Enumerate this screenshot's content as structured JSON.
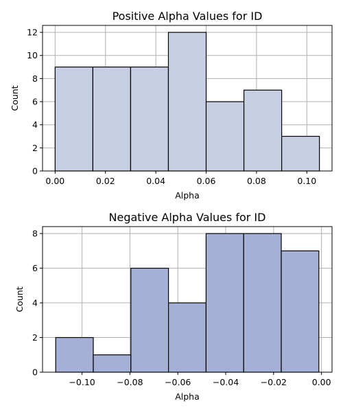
{
  "chart_data": [
    {
      "type": "bar",
      "title": "Positive Alpha Values for ID",
      "xlabel": "Alpha",
      "ylabel": "Count",
      "bins": [
        {
          "x0": 0.0,
          "x1": 0.015,
          "count": 9
        },
        {
          "x0": 0.015,
          "x1": 0.03,
          "count": 9
        },
        {
          "x0": 0.03,
          "x1": 0.045,
          "count": 9
        },
        {
          "x0": 0.045,
          "x1": 0.06,
          "count": 12
        },
        {
          "x0": 0.06,
          "x1": 0.075,
          "count": 6
        },
        {
          "x0": 0.075,
          "x1": 0.09,
          "count": 7
        },
        {
          "x0": 0.09,
          "x1": 0.105,
          "count": 3
        }
      ],
      "xlim": [
        -0.005,
        0.11
      ],
      "ylim": [
        0,
        12.6
      ],
      "xticks": [
        0.0,
        0.02,
        0.04,
        0.06,
        0.08,
        0.1
      ],
      "xtick_labels": [
        "0.00",
        "0.02",
        "0.04",
        "0.06",
        "0.08",
        "0.10"
      ],
      "yticks": [
        0,
        2,
        4,
        6,
        8,
        10,
        12
      ],
      "ytick_labels": [
        "0",
        "2",
        "4",
        "6",
        "8",
        "10",
        "12"
      ],
      "grid": true,
      "color": "#c5cee2"
    },
    {
      "type": "bar",
      "title": "Negative Alpha Values for ID",
      "xlabel": "Alpha",
      "ylabel": "Count",
      "bins": [
        {
          "x0": -0.111,
          "x1": -0.0953,
          "count": 2
        },
        {
          "x0": -0.0953,
          "x1": -0.0796,
          "count": 1
        },
        {
          "x0": -0.0796,
          "x1": -0.0639,
          "count": 6
        },
        {
          "x0": -0.0639,
          "x1": -0.0482,
          "count": 4
        },
        {
          "x0": -0.0482,
          "x1": -0.0325,
          "count": 8
        },
        {
          "x0": -0.0325,
          "x1": -0.0168,
          "count": 8
        },
        {
          "x0": -0.0168,
          "x1": -0.0011,
          "count": 7
        }
      ],
      "xlim": [
        -0.1165,
        0.0044
      ],
      "ylim": [
        0,
        8.4
      ],
      "xticks": [
        -0.1,
        -0.08,
        -0.06,
        -0.04,
        -0.02,
        0.0
      ],
      "xtick_labels": [
        "−0.10",
        "−0.08",
        "−0.06",
        "−0.04",
        "−0.02",
        "0.00"
      ],
      "yticks": [
        0,
        2,
        4,
        6,
        8
      ],
      "ytick_labels": [
        "0",
        "2",
        "4",
        "6",
        "8"
      ],
      "grid": true,
      "color": "#a4b0d5"
    }
  ]
}
